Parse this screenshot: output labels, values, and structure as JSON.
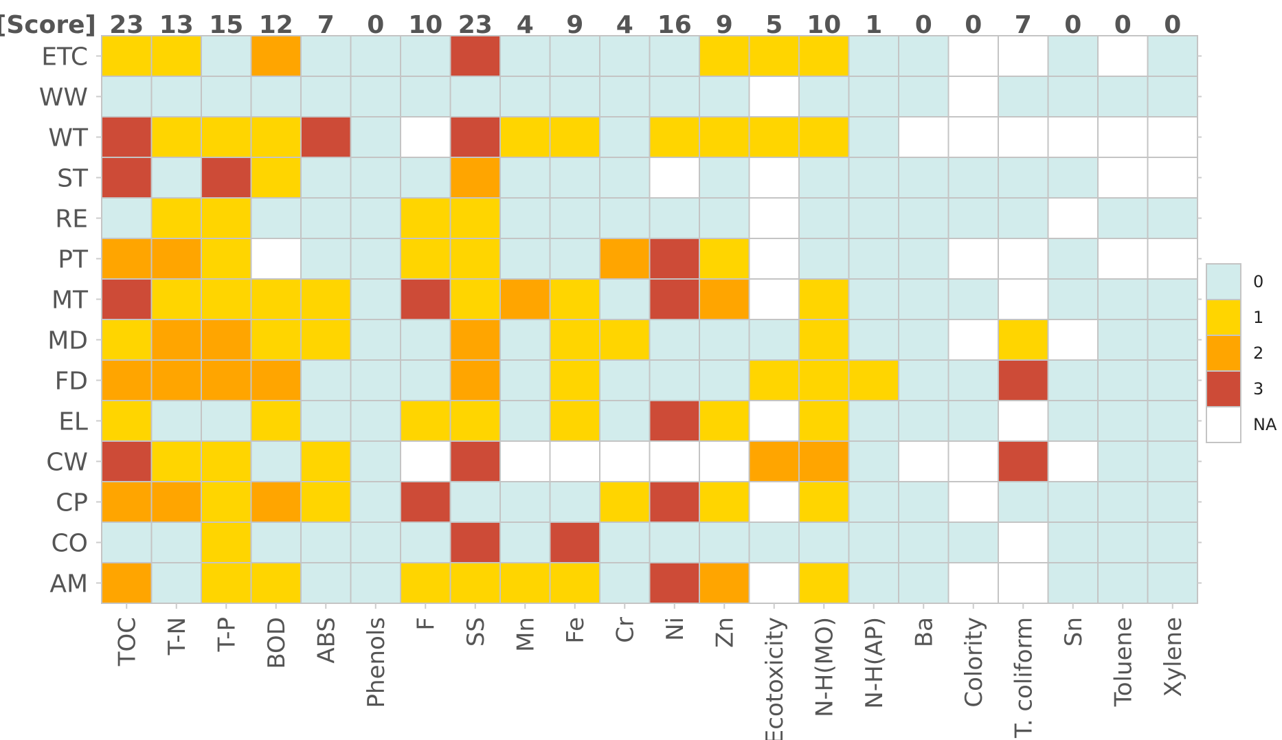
{
  "chart_data": {
    "type": "heatmap",
    "score_header": "[Score]",
    "columns": [
      "TOC",
      "T-N",
      "T-P",
      "BOD",
      "ABS",
      "Phenols",
      "F",
      "SS",
      "Mn",
      "Fe",
      "Cr",
      "Ni",
      "Zn",
      "Ecotoxicity",
      "N-H(MO)",
      "N-H(AP)",
      "Ba",
      "Colority",
      "T. coliform",
      "Sn",
      "Toluene",
      "Xylene"
    ],
    "scores": [
      "23",
      "13",
      "15",
      "12",
      "7",
      "0",
      "10",
      "23",
      "4",
      "9",
      "4",
      "16",
      "9",
      "5",
      "10",
      "1",
      "0",
      "0",
      "7",
      "0",
      "0",
      "0"
    ],
    "rows": [
      "ETC",
      "WW",
      "WT",
      "ST",
      "RE",
      "PT",
      "MT",
      "MD",
      "FD",
      "EL",
      "CW",
      "CP",
      "CO",
      "AM"
    ],
    "values": [
      [
        1,
        1,
        0,
        2,
        0,
        0,
        0,
        3,
        0,
        0,
        0,
        0,
        1,
        1,
        1,
        0,
        0,
        null,
        null,
        0,
        null,
        0
      ],
      [
        0,
        0,
        0,
        0,
        0,
        0,
        0,
        0,
        0,
        0,
        0,
        0,
        0,
        null,
        0,
        0,
        0,
        null,
        0,
        0,
        0,
        0
      ],
      [
        3,
        1,
        1,
        1,
        3,
        0,
        null,
        3,
        1,
        1,
        0,
        1,
        1,
        1,
        1,
        0,
        null,
        null,
        null,
        null,
        null,
        null
      ],
      [
        3,
        0,
        3,
        1,
        0,
        0,
        0,
        2,
        0,
        0,
        0,
        null,
        0,
        null,
        0,
        0,
        0,
        0,
        0,
        0,
        null,
        null
      ],
      [
        0,
        1,
        1,
        0,
        0,
        0,
        1,
        1,
        0,
        0,
        0,
        0,
        0,
        null,
        0,
        0,
        0,
        0,
        0,
        null,
        0,
        0
      ],
      [
        2,
        2,
        1,
        null,
        0,
        0,
        1,
        1,
        0,
        0,
        2,
        3,
        1,
        null,
        0,
        0,
        0,
        null,
        null,
        0,
        null,
        null
      ],
      [
        3,
        1,
        1,
        1,
        1,
        0,
        3,
        1,
        2,
        1,
        0,
        3,
        2,
        null,
        1,
        0,
        0,
        0,
        null,
        0,
        0,
        0
      ],
      [
        1,
        2,
        2,
        1,
        1,
        0,
        0,
        2,
        0,
        1,
        1,
        0,
        0,
        0,
        1,
        0,
        0,
        null,
        1,
        null,
        0,
        0
      ],
      [
        2,
        2,
        2,
        2,
        0,
        0,
        0,
        2,
        0,
        1,
        0,
        0,
        0,
        1,
        1,
        1,
        0,
        0,
        3,
        0,
        0,
        0
      ],
      [
        1,
        0,
        0,
        1,
        0,
        0,
        1,
        1,
        0,
        1,
        0,
        3,
        1,
        null,
        1,
        0,
        0,
        0,
        null,
        0,
        0,
        0
      ],
      [
        3,
        1,
        1,
        0,
        1,
        0,
        null,
        3,
        null,
        null,
        null,
        null,
        null,
        2,
        2,
        0,
        null,
        null,
        3,
        null,
        0,
        0
      ],
      [
        2,
        2,
        1,
        2,
        1,
        0,
        3,
        0,
        0,
        0,
        1,
        3,
        1,
        null,
        1,
        0,
        0,
        null,
        0,
        0,
        0,
        0
      ],
      [
        0,
        0,
        1,
        0,
        0,
        0,
        0,
        3,
        0,
        3,
        0,
        0,
        0,
        0,
        0,
        0,
        0,
        0,
        null,
        0,
        0,
        0
      ],
      [
        2,
        0,
        1,
        1,
        0,
        0,
        1,
        1,
        1,
        1,
        0,
        3,
        2,
        null,
        1,
        0,
        0,
        null,
        null,
        0,
        0,
        0
      ]
    ],
    "legend": [
      {
        "value": 0,
        "label": "0",
        "color": "#d2ecec"
      },
      {
        "value": 1,
        "label": "1",
        "color": "#ffd500"
      },
      {
        "value": 2,
        "label": "2",
        "color": "#ffa500"
      },
      {
        "value": 3,
        "label": "3",
        "color": "#cd4b37"
      },
      {
        "value": null,
        "label": "NA",
        "color": "#ffffff"
      }
    ],
    "legend_placement": "right",
    "title": "",
    "xlabel": "",
    "ylabel": ""
  }
}
